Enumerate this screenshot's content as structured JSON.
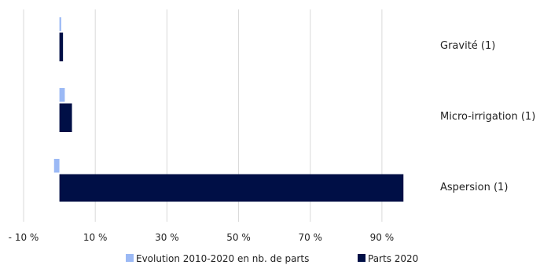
{
  "chart_data": {
    "type": "bar",
    "orientation": "horizontal",
    "categories": [
      "Gravité (1)",
      "Micro-irrigation (1)",
      "Aspersion (1)"
    ],
    "series": [
      {
        "name": "Evolution 2010-2020 en nb. de parts",
        "values": [
          0.5,
          1.5,
          -1.5
        ],
        "color": "#9bb9f5"
      },
      {
        "name": "Parts 2020",
        "values": [
          1.0,
          3.5,
          96.0
        ],
        "color": "#000f46"
      }
    ],
    "xlim": [
      -10,
      100
    ],
    "xticks": [
      -10,
      10,
      30,
      50,
      70,
      90
    ],
    "xtick_labels": [
      "- 10 %",
      "10 %",
      "30 %",
      "50 %",
      "70 %",
      "90 %"
    ],
    "grid": true,
    "legend_position": "bottom",
    "category_labels_position": "right"
  }
}
